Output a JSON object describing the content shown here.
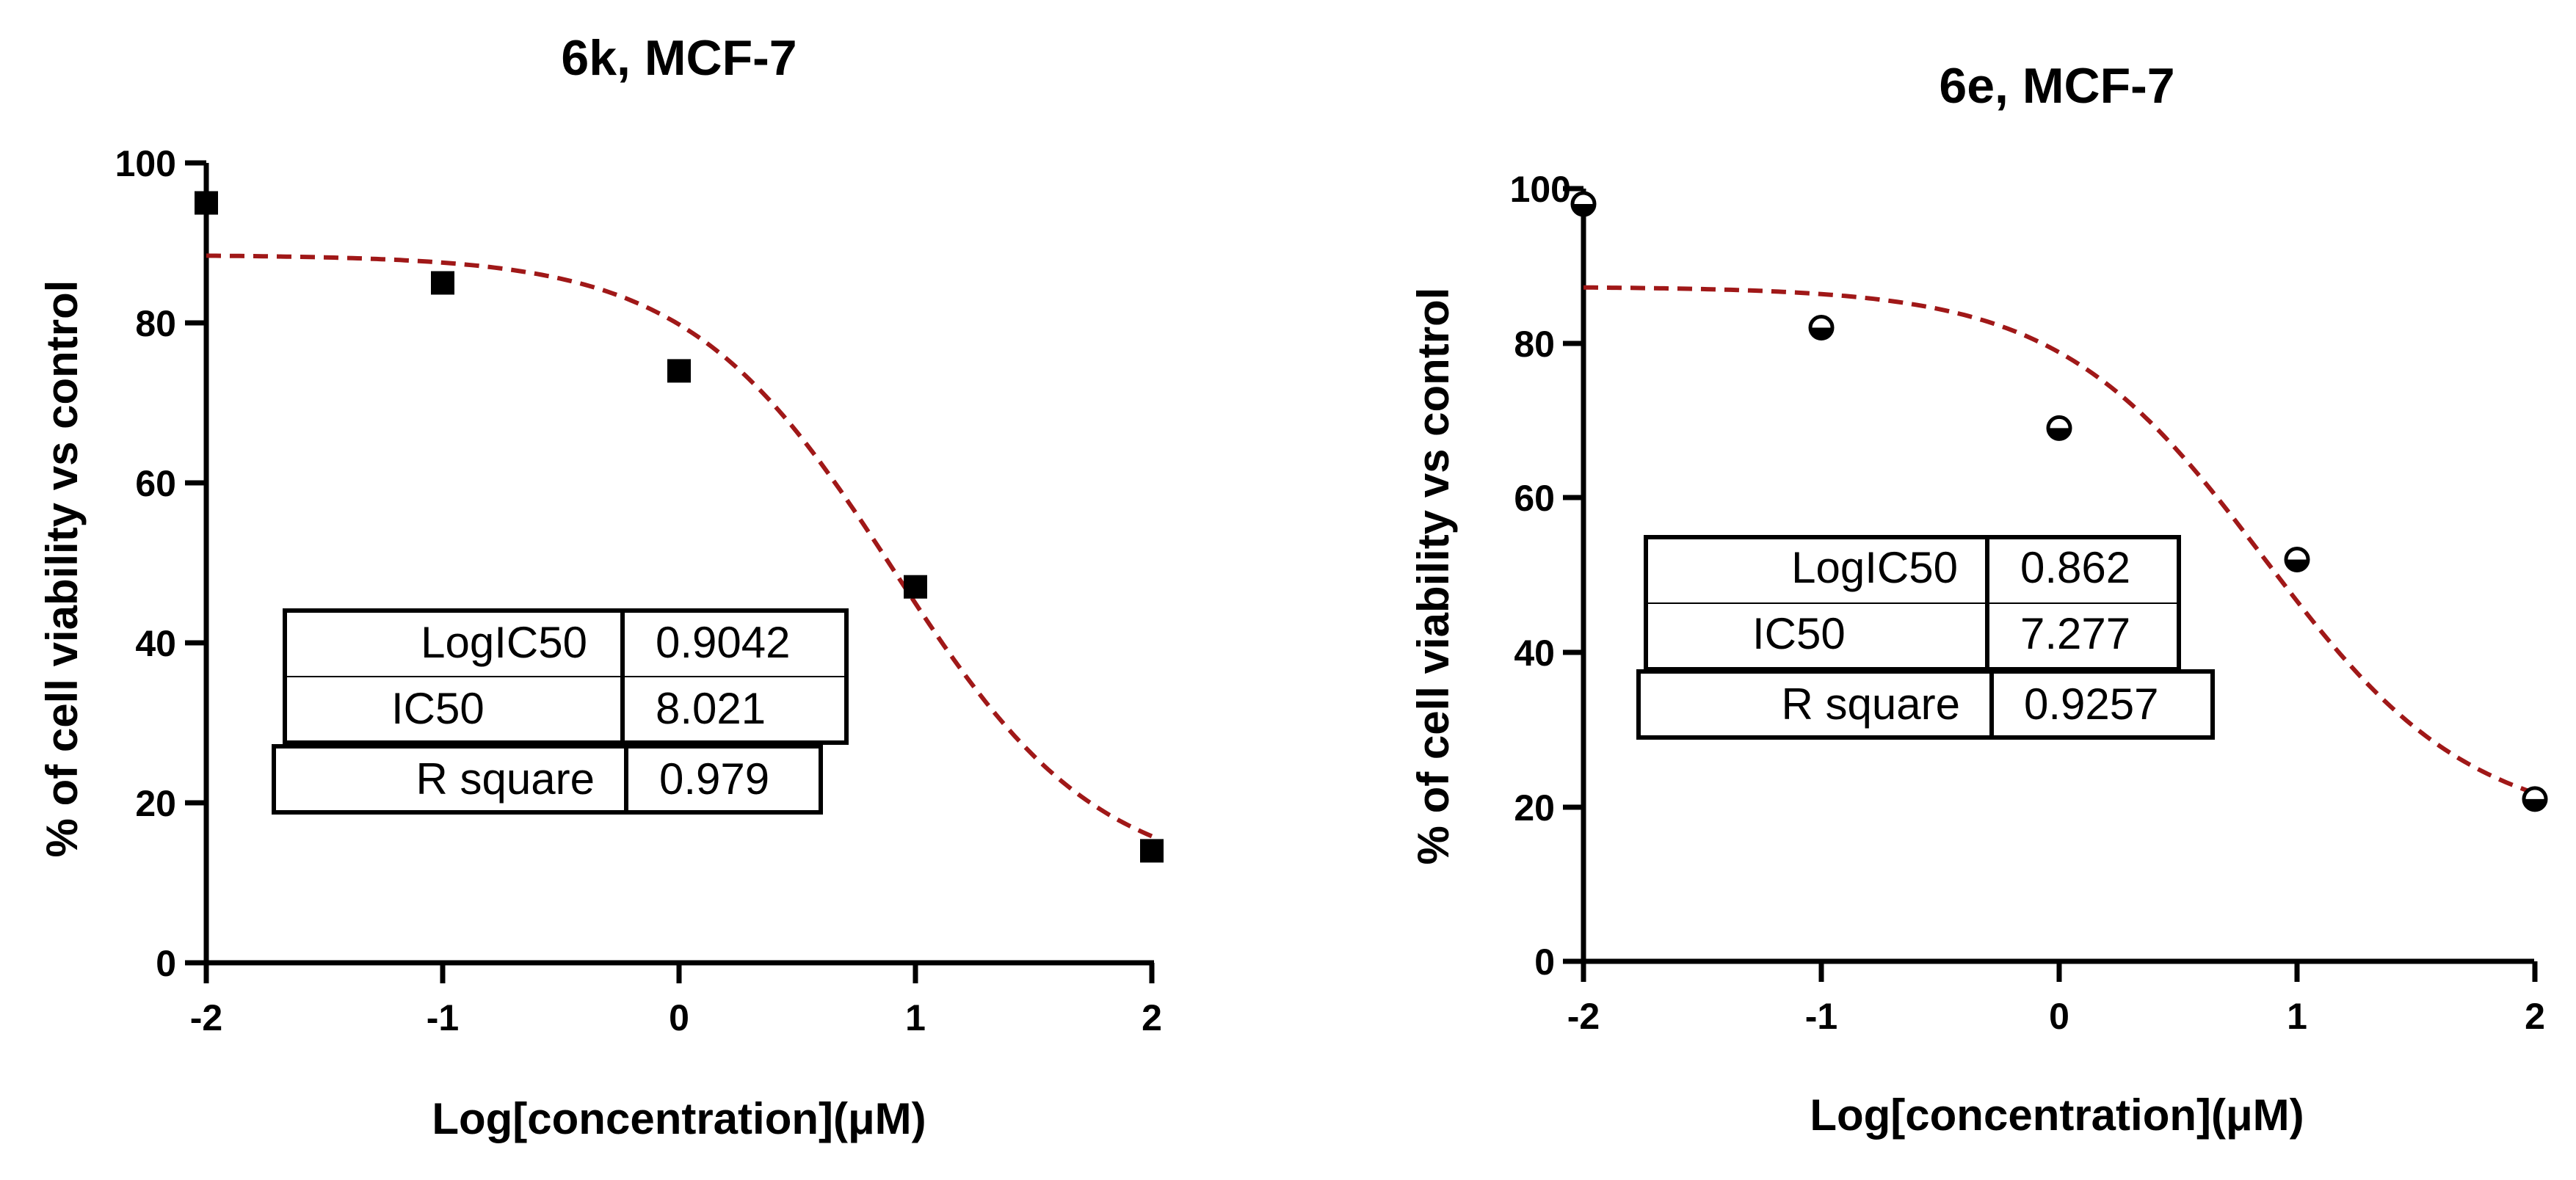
{
  "chart_data": [
    {
      "type": "scatter",
      "title": "6k, MCF-7",
      "xlabel": "Log[concentration](μM)",
      "ylabel": "% of cell viability vs control",
      "xlim": [
        -2,
        2
      ],
      "ylim": [
        0,
        100
      ],
      "x_ticks": [
        -2,
        -1,
        0,
        1,
        2
      ],
      "y_ticks": [
        0,
        20,
        40,
        60,
        80,
        100
      ],
      "x_tick_labels": [
        "-2",
        "-1",
        "0",
        "1",
        "2"
      ],
      "y_tick_labels": [
        "0",
        "20",
        "40",
        "60",
        "80",
        "100"
      ],
      "marker": "square",
      "points": [
        {
          "x": -2,
          "y": 95
        },
        {
          "x": -1,
          "y": 85
        },
        {
          "x": 0,
          "y": 74
        },
        {
          "x": 1,
          "y": 47
        },
        {
          "x": 2,
          "y": 14
        }
      ],
      "fit": {
        "bottom": 10,
        "top": 88.5,
        "logIC50": 0.9042,
        "hill": -1,
        "color": "#a01818"
      },
      "table": [
        {
          "label": "LogIC50",
          "value": "0.9042"
        },
        {
          "label": "IC50",
          "value": "8.021"
        },
        {
          "label": "R square",
          "value": "0.979"
        }
      ]
    },
    {
      "type": "scatter",
      "title": "6e, MCF-7",
      "xlabel": "Log[concentration](μM)",
      "ylabel": "% of cell viability vs control",
      "xlim": [
        -2,
        2
      ],
      "ylim": [
        0,
        100
      ],
      "x_ticks": [
        -2,
        -1,
        0,
        1,
        2
      ],
      "y_ticks": [
        0,
        20,
        40,
        60,
        80,
        100
      ],
      "x_tick_labels": [
        "-2",
        "-1",
        "0",
        "1",
        "2"
      ],
      "y_tick_labels": [
        "0",
        "20",
        "40",
        "60",
        "80",
        "100"
      ],
      "marker": "half-filled-circle",
      "points": [
        {
          "x": -2,
          "y": 98
        },
        {
          "x": -1,
          "y": 82
        },
        {
          "x": 0,
          "y": 69
        },
        {
          "x": 1,
          "y": 52
        },
        {
          "x": 2,
          "y": 21
        }
      ],
      "fit": {
        "bottom": 17,
        "top": 87.3,
        "logIC50": 0.862,
        "hill": -1,
        "color": "#a01818"
      },
      "table": [
        {
          "label": "LogIC50",
          "value": "0.862"
        },
        {
          "label": "IC50",
          "value": "7.277"
        },
        {
          "label": "R square",
          "value": "0.9257"
        }
      ]
    }
  ]
}
